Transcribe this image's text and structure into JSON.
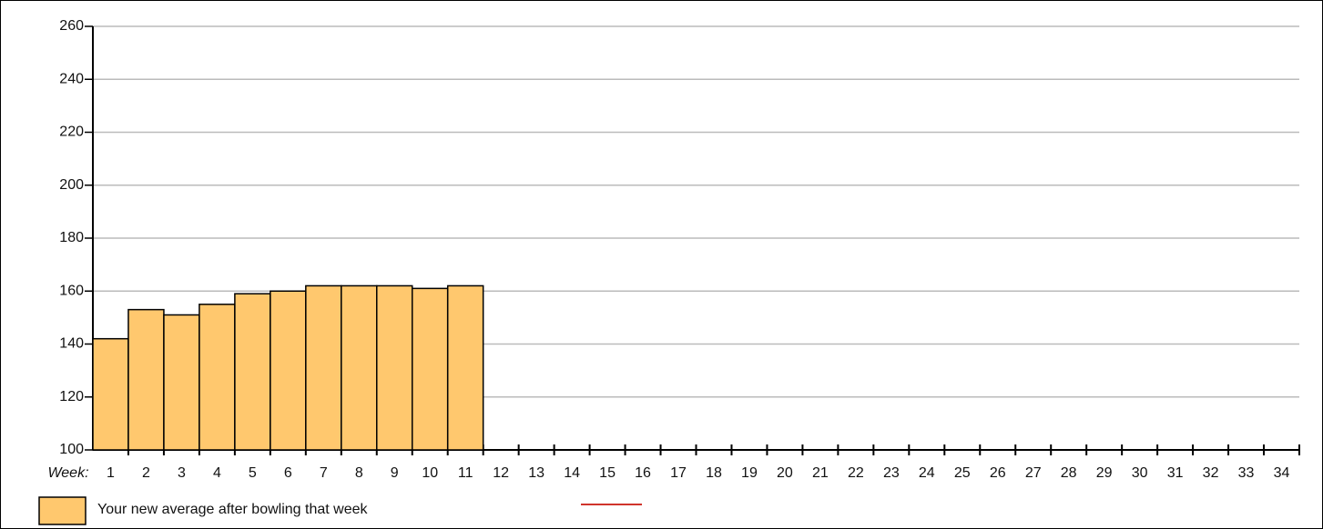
{
  "chart_data": {
    "type": "bar",
    "x_label": "Week:",
    "categories": [
      "1",
      "2",
      "3",
      "4",
      "5",
      "6",
      "7",
      "8",
      "9",
      "10",
      "11",
      "12",
      "13",
      "14",
      "15",
      "16",
      "17",
      "18",
      "19",
      "20",
      "21",
      "22",
      "23",
      "24",
      "25",
      "26",
      "27",
      "28",
      "29",
      "30",
      "31",
      "32",
      "33",
      "34"
    ],
    "series": [
      {
        "name": "Your new average after bowling that week",
        "color": "#ffc86e",
        "values": [
          142,
          153,
          151,
          155,
          159,
          160,
          162,
          162,
          162,
          161,
          162,
          null,
          null,
          null,
          null,
          null,
          null,
          null,
          null,
          null,
          null,
          null,
          null,
          null,
          null,
          null,
          null,
          null,
          null,
          null,
          null,
          null,
          null,
          null
        ]
      }
    ],
    "ylim": [
      100,
      260
    ],
    "yticks": [
      100,
      120,
      140,
      160,
      180,
      200,
      220,
      240,
      260
    ],
    "grid": true
  }
}
